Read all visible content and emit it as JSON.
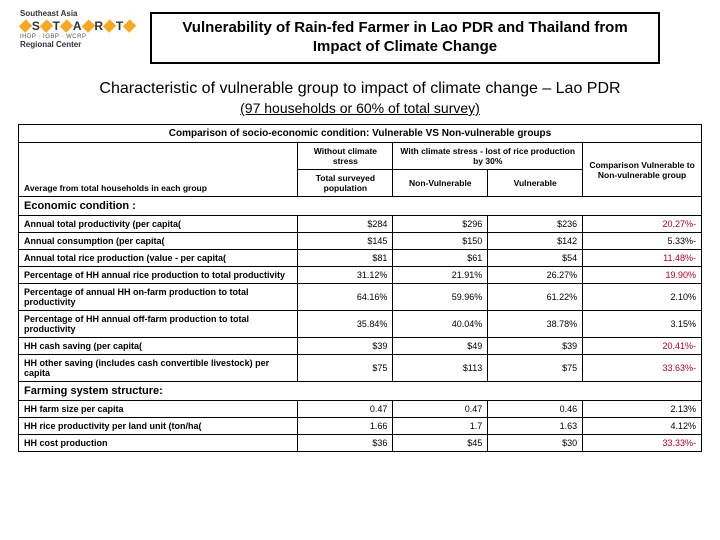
{
  "logo": {
    "line1": "Southeast Asia",
    "letters": [
      "S",
      "T",
      "A",
      "R",
      "T"
    ],
    "sub": "IHDP · IGBP · WCRP",
    "line3": "Regional Center"
  },
  "title": "Vulnerability of Rain-fed Farmer in Lao PDR and Thailand from Impact of Climate Change",
  "subhead": "Characteristic of vulnerable group to impact of climate change – Lao PDR",
  "subhead2": "(97 households or 60% of total survey)",
  "table": {
    "span_title": "Comparison of socio-economic condition: Vulnerable VS Non-vulnerable groups",
    "h_without": "Without climate stress",
    "h_with": "With climate stress - lost of rice production by 30%",
    "h_comp": "Comparison Vulnerable to Non-vulnerable group",
    "h_avg": "Average from total households in each group",
    "h_total": "Total surveyed population",
    "h_nonv": "Non-Vulnerable",
    "h_v": "Vulnerable",
    "sections": {
      "econ": "Economic condition :",
      "farm": "Farming system structure:"
    },
    "rows": [
      {
        "label": "Annual total productivity (per capita(",
        "a": "$284",
        "b": "$296",
        "c": "$236",
        "d": "20.27%-",
        "red": true
      },
      {
        "label": "Annual consumption (per capita(",
        "a": "$145",
        "b": "$150",
        "c": "$142",
        "d": "5.33%-",
        "red": false
      },
      {
        "label": "Annual total rice production (value - per capita(",
        "a": "$81",
        "b": "$61",
        "c": "$54",
        "d": "11.48%-",
        "red": true
      },
      {
        "label": "Percentage of HH annual rice production to total productivity",
        "a": "31.12%",
        "b": "21.91%",
        "c": "26.27%",
        "d": "19.90%",
        "red": true
      },
      {
        "label": "Percentage of annual HH on-farm production to total productivity",
        "a": "64.16%",
        "b": "59.96%",
        "c": "61.22%",
        "d": "2.10%",
        "red": false
      },
      {
        "label": "Percentage of HH annual off-farm production to total productivity",
        "a": "35.84%",
        "b": "40.04%",
        "c": "38.78%",
        "d": "3.15%",
        "red": false
      },
      {
        "label": "HH cash saving (per capita(",
        "a": "$39",
        "b": "$49",
        "c": "$39",
        "d": "20.41%-",
        "red": true
      },
      {
        "label": "HH other saving (includes cash convertible livestock) per capita",
        "a": "$75",
        "b": "$113",
        "c": "$75",
        "d": "33.63%-",
        "red": true
      }
    ],
    "farm_rows": [
      {
        "label": "HH farm size per capita",
        "a": "0.47",
        "b": "0.47",
        "c": "0.46",
        "d": "2.13%",
        "red": false
      },
      {
        "label": "HH rice productivity per land unit (ton/ha(",
        "a": "1.66",
        "b": "1.7",
        "c": "1.63",
        "d": "4.12%",
        "red": false
      },
      {
        "label": "HH cost production",
        "a": "$36",
        "b": "$45",
        "c": "$30",
        "d": "33.33%-",
        "red": true
      }
    ]
  }
}
